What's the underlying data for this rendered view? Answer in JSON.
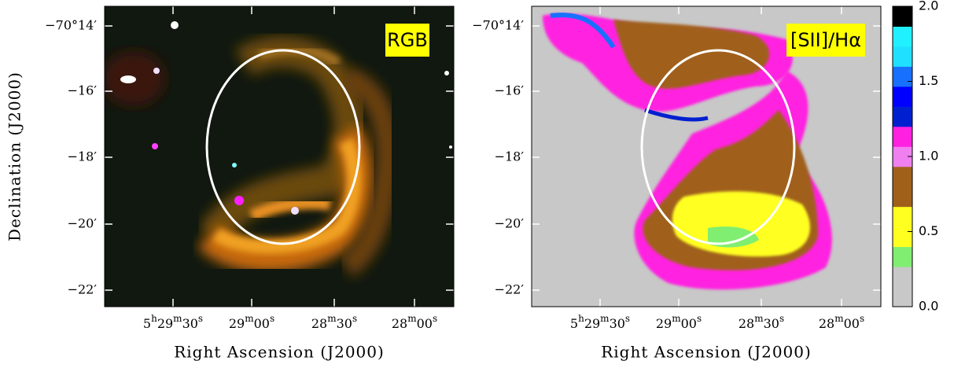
{
  "panels": [
    {
      "label": "RGB",
      "dec_ticks": [
        "−70°14′",
        "−16′",
        "−18′",
        "−20′",
        "−22′"
      ],
      "ra_ticks": [
        "5h29m30s",
        "29m00s",
        "28m30s",
        "28m00s"
      ],
      "x_label": "Right Ascension (J2000)"
    },
    {
      "label": "[SII]/Hα",
      "dec_ticks": [
        "−70°14′",
        "−16′",
        "−18′",
        "−20′",
        "−22′"
      ],
      "ra_ticks": [
        "5h29m30s",
        "29m00s",
        "28m30s",
        "28m00s"
      ],
      "x_label": "Right Ascension (J2000)"
    }
  ],
  "y_label": "Declination (J2000)",
  "colorbar": {
    "ticks": [
      {
        "value": 0,
        "label": "0.0"
      },
      0.5,
      {
        "value": 1,
        "label": "1.0"
      },
      1.5,
      {
        "value": 2,
        "label": "2.0"
      }
    ],
    "colors": [
      "#c8c8c8",
      "#c8c8c8",
      "#80ee70",
      "#ffff20",
      "#ffff20",
      "#a0601a",
      "#a0601a",
      "#f080f0",
      "#ff20e0",
      "#0020d0",
      "#0000ff",
      "#1870ff",
      "#20e0ff",
      "#20f0ff",
      "#000000"
    ]
  }
}
